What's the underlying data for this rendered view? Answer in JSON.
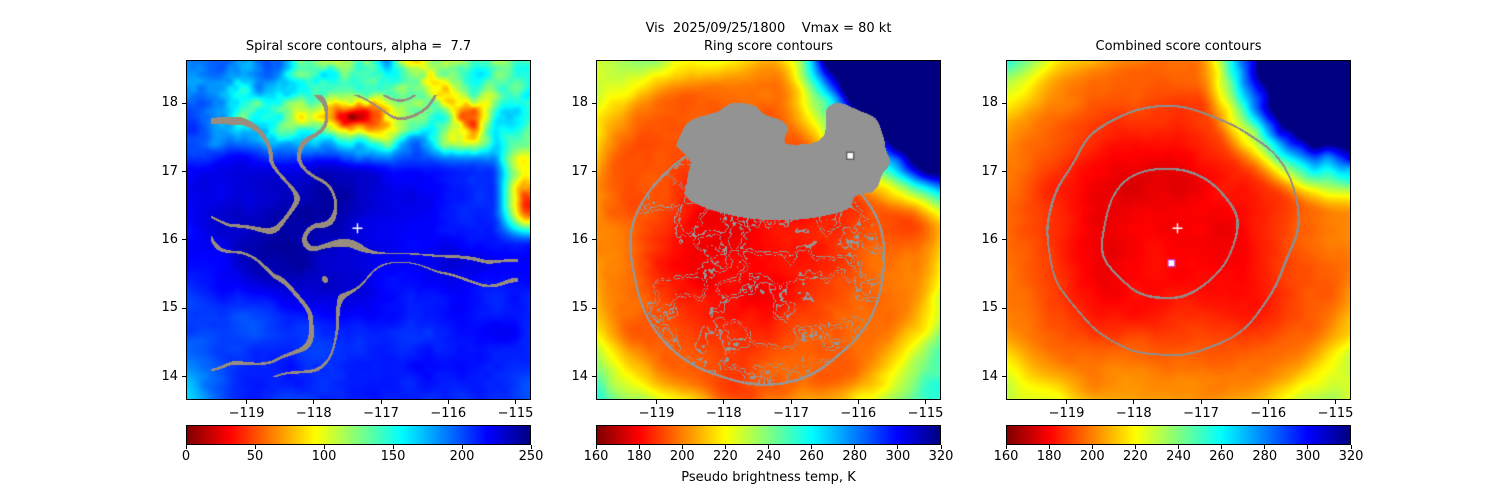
{
  "figure": {
    "background": "#ffffff"
  },
  "chart_data": {
    "type": "heatmap",
    "suptitle": "Vis  2025/09/25/1800    Vmax = 80 kt",
    "colorbar_label": "Pseudo brightness temp, K",
    "grid": false,
    "panels": [
      {
        "id": "spiral",
        "title": "Spiral score contours, alpha =  7.7",
        "description": "Visible-channel satellite image of tropical cyclone (mostly high reflectance, blue in reversed-jet colormap) with gray spiral-score contour lines and white plus at storm center",
        "x_range": [
          -119.9,
          -114.77
        ],
        "y_range": [
          13.66,
          18.63
        ],
        "xtick_values": [
          -119,
          -118,
          -117,
          -116,
          -115
        ],
        "xtick_labels": [
          "−119",
          "−118",
          "−117",
          "−116",
          "−115"
        ],
        "ytick_values": [
          14,
          15,
          16,
          17,
          18
        ],
        "ytick_labels": [
          "14",
          "15",
          "16",
          "17",
          "18"
        ],
        "colormap": "jet_r",
        "vmin": 0,
        "vmax": 250,
        "cbar_tick_values": [
          0,
          50,
          100,
          150,
          200,
          250
        ],
        "cbar_tick_labels": [
          "0",
          "50",
          "100",
          "150",
          "200",
          "250"
        ],
        "contour_color": "#988d7e",
        "markers": [
          {
            "shape": "plus",
            "x": -117.35,
            "y": 16.17,
            "edge": "#ffffff"
          }
        ]
      },
      {
        "id": "ring",
        "title": "Ring score contours",
        "description": "Infrared brightness-temperature image (cold red core, warm blue clear-sky corner) with dense noisy gray ring-score contours, solid gray masked region in upper half, white square marker",
        "x_range": [
          -119.9,
          -114.77
        ],
        "y_range": [
          13.66,
          18.63
        ],
        "xtick_values": [
          -119,
          -118,
          -117,
          -116,
          -115
        ],
        "xtick_labels": [
          "−119",
          "−118",
          "−117",
          "−116",
          "−115"
        ],
        "ytick_values": [
          14,
          15,
          16,
          17,
          18
        ],
        "ytick_labels": [
          "14",
          "15",
          "16",
          "17",
          "18"
        ],
        "colormap": "jet_r",
        "vmin": 160,
        "vmax": 320,
        "cbar_tick_values": [
          160,
          180,
          200,
          220,
          240,
          260,
          280,
          300,
          320
        ],
        "cbar_tick_labels": [
          "160",
          "180",
          "200",
          "220",
          "240",
          "260",
          "280",
          "300",
          "320"
        ],
        "contour_color": "#969696",
        "markers": [
          {
            "shape": "square",
            "x": -116.12,
            "y": 17.23,
            "face": "#ffffff",
            "edge": "#555555"
          }
        ]
      },
      {
        "id": "combined",
        "title": "Combined score contours",
        "description": "Infrared brightness-temperature image with smooth gray combined-score contour loops, white plus at storm center and magenta-edged white square at combined-score fix",
        "x_range": [
          -119.9,
          -114.77
        ],
        "y_range": [
          13.66,
          18.63
        ],
        "xtick_values": [
          -119,
          -118,
          -117,
          -116,
          -115
        ],
        "xtick_labels": [
          "−119",
          "−118",
          "−117",
          "−116",
          "−115"
        ],
        "ytick_values": [
          14,
          15,
          16,
          17,
          18
        ],
        "ytick_labels": [
          "14",
          "15",
          "16",
          "17",
          "18"
        ],
        "colormap": "jet_r",
        "vmin": 160,
        "vmax": 320,
        "cbar_tick_values": [
          160,
          180,
          200,
          220,
          240,
          260,
          280,
          300,
          320
        ],
        "cbar_tick_labels": [
          "160",
          "180",
          "200",
          "220",
          "240",
          "260",
          "280",
          "300",
          "320"
        ],
        "contour_color": "#8e8e8e",
        "markers": [
          {
            "shape": "plus",
            "x": -117.35,
            "y": 16.17,
            "edge": "#ffffff"
          },
          {
            "shape": "square",
            "x": -117.44,
            "y": 15.66,
            "face": "#ffffff",
            "edge": "#c433c4"
          }
        ]
      }
    ]
  }
}
